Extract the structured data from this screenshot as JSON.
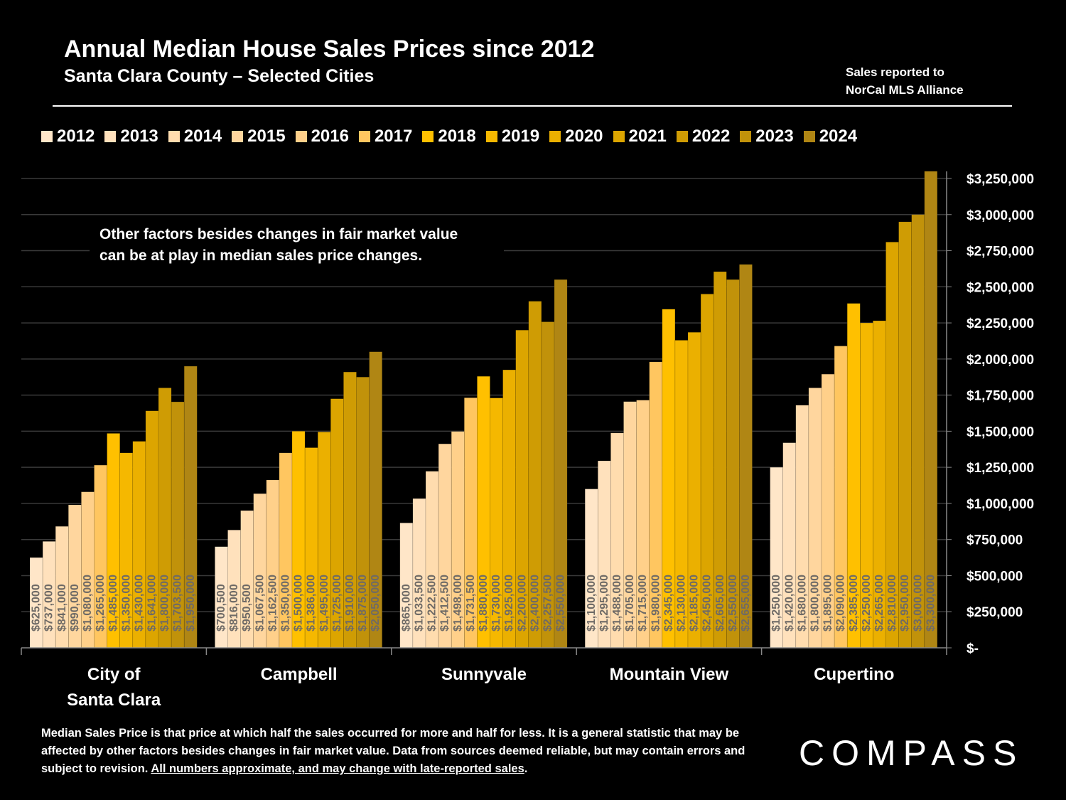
{
  "header": {
    "title": "Annual Median House Sales Prices since 2012",
    "subtitle": "Santa Clara County – Selected Cities",
    "source_line1": "Sales reported to",
    "source_line2": "NorCal MLS Alliance"
  },
  "note": {
    "line1": "Other factors besides changes in fair market value",
    "line2": "can be at play in median sales price changes."
  },
  "footer": {
    "text": "Median Sales Price is that price at which half the sales occurred for more and half for less. It is a general statistic that may be affected by other factors besides changes in fair market value. Data from sources deemed reliable, but may contain errors and subject to revision.",
    "underlined": "All numbers approximate, and may change with late-reported sales",
    "end": "."
  },
  "logo": "COMPASS",
  "chart_data": {
    "type": "bar",
    "categories": [
      [
        "City of",
        "Santa Clara"
      ],
      [
        "Campbell"
      ],
      [
        "Sunnyvale"
      ],
      [
        "Mountain View"
      ],
      [
        "Cupertino"
      ]
    ],
    "ylim": [
      0,
      3250000
    ],
    "yticks": [
      0,
      250000,
      500000,
      750000,
      1000000,
      1250000,
      1500000,
      1750000,
      2000000,
      2250000,
      2500000,
      2750000,
      3000000,
      3250000
    ],
    "ytick_labels": [
      "$-",
      "$250,000",
      "$500,000",
      "$750,000",
      "$1,000,000",
      "$1,250,000",
      "$1,500,000",
      "$1,750,000",
      "$2,000,000",
      "$2,250,000",
      "$2,500,000",
      "$2,750,000",
      "$3,000,000",
      "$3,250,000"
    ],
    "y_axis_side": "right",
    "grid": true,
    "legend_position": "top",
    "series": [
      {
        "name": "2012",
        "color": "#FFE6C8",
        "values": [
          625000,
          700500,
          865000,
          1100000,
          1250000
        ],
        "labels": [
          "$625,000",
          "$700,500",
          "$865,000",
          "$1,100,000",
          "$1,250,000"
        ]
      },
      {
        "name": "2013",
        "color": "#FFE1BC",
        "values": [
          737000,
          816000,
          1033500,
          1295000,
          1420000
        ],
        "labels": [
          "$737,000",
          "$816,000",
          "$1,033,500",
          "$1,295,000",
          "$1,420,000"
        ]
      },
      {
        "name": "2014",
        "color": "#FFDCAE",
        "values": [
          841000,
          950500,
          1222500,
          1488000,
          1680000
        ],
        "labels": [
          "$841,000",
          "$950,500",
          "$1,222,500",
          "$1,488,000",
          "$1,680,000"
        ]
      },
      {
        "name": "2015",
        "color": "#FFD69E",
        "values": [
          990000,
          1067500,
          1412500,
          1705000,
          1800000
        ],
        "labels": [
          "$990,000",
          "$1,067,500",
          "$1,412,500",
          "$1,705,000",
          "$1,800,000"
        ]
      },
      {
        "name": "2016",
        "color": "#FFD08A",
        "values": [
          1080000,
          1162500,
          1498000,
          1715000,
          1895000
        ],
        "labels": [
          "$1,080,000",
          "$1,162,500",
          "$1,498,000",
          "$1,715,000",
          "$1,895,000"
        ]
      },
      {
        "name": "2017",
        "color": "#FFC660",
        "values": [
          1265000,
          1350000,
          1731500,
          1980000,
          2090000
        ],
        "labels": [
          "$1,265,000",
          "$1,350,000",
          "$1,731,500",
          "$1,980,000",
          "$2,090,000"
        ]
      },
      {
        "name": "2018",
        "color": "#FFC000",
        "values": [
          1485000,
          1500000,
          1880000,
          2345000,
          2385000
        ],
        "labels": [
          "$1,485,000",
          "$1,500,000",
          "$1,880,000",
          "$2,345,000",
          "$2,385,000"
        ]
      },
      {
        "name": "2019",
        "color": "#F5B800",
        "values": [
          1350000,
          1386000,
          1730000,
          2130000,
          2250000
        ],
        "labels": [
          "$1,350,000",
          "$1,386,000",
          "$1,730,000",
          "$2,130,000",
          "$2,250,000"
        ]
      },
      {
        "name": "2020",
        "color": "#EBB000",
        "values": [
          1430000,
          1495000,
          1925000,
          2185000,
          2265000
        ],
        "labels": [
          "$1,430,000",
          "$1,495,000",
          "$1,925,000",
          "$2,185,000",
          "$2,265,000"
        ]
      },
      {
        "name": "2021",
        "color": "#DCA500",
        "values": [
          1641000,
          1725000,
          2200000,
          2450000,
          2810000
        ],
        "labels": [
          "$1,641,000",
          "$1,725,000",
          "$2,200,000",
          "$2,450,000",
          "$2,810,000"
        ]
      },
      {
        "name": "2022",
        "color": "#CF9C04",
        "values": [
          1800000,
          1910000,
          2400000,
          2605000,
          2950000
        ],
        "labels": [
          "$1,800,000",
          "$1,910,000",
          "$2,400,000",
          "$2,605,000",
          "$2,950,000"
        ]
      },
      {
        "name": "2023",
        "color": "#C1920A",
        "values": [
          1703500,
          1875000,
          2257500,
          2550000,
          3000000
        ],
        "labels": [
          "$1,703,500",
          "$1,875,000",
          "$2,257,500",
          "$2,550,000",
          "$3,000,000"
        ]
      },
      {
        "name": "2024",
        "color": "#B08614",
        "values": [
          1950000,
          2050000,
          2550000,
          2655000,
          3300000
        ],
        "labels": [
          "$1,950,000",
          "$2,050,000",
          "$2,550,000",
          "$2,655,000",
          "$3,300,000"
        ]
      }
    ]
  }
}
